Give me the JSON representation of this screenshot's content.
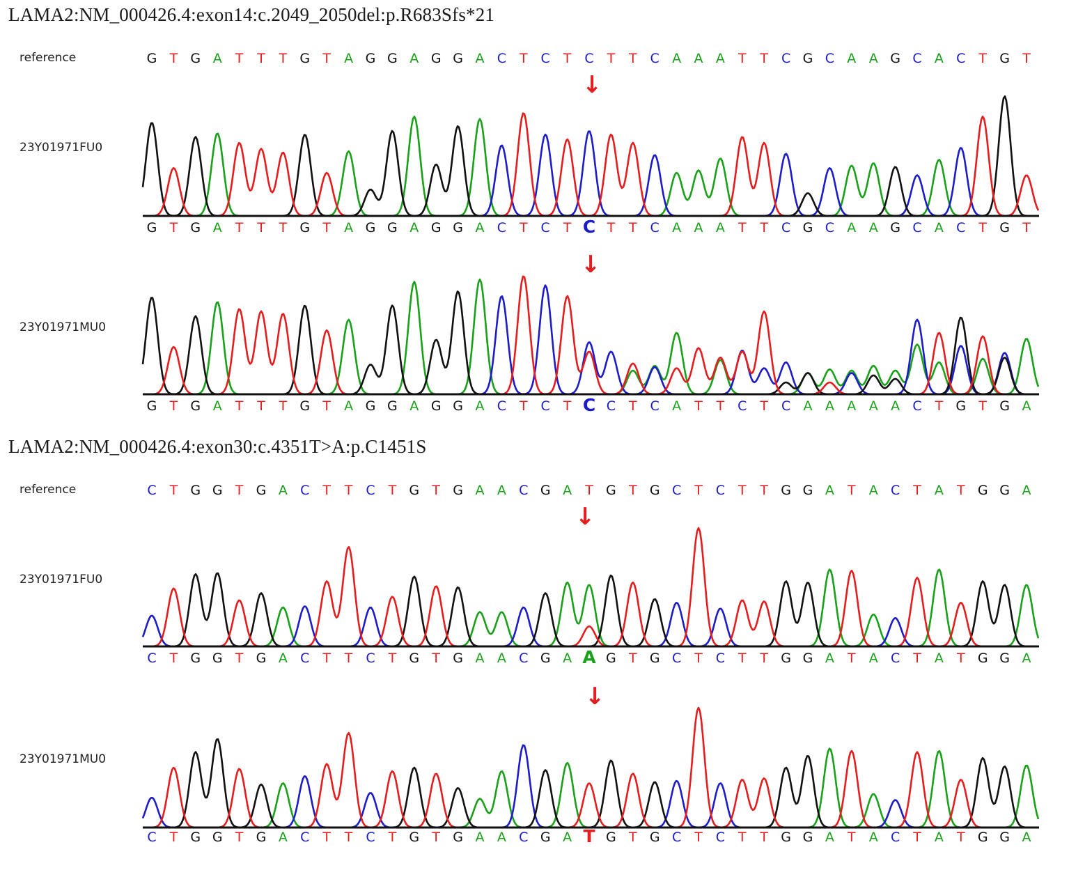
{
  "colors": {
    "A": "#1aa11a",
    "C": "#1c1cc8",
    "G": "#111111",
    "T": "#e41e1e",
    "arrow": "#e41e1e"
  },
  "panels": [
    {
      "title": "LAMA2:NM_000426.4:exon14:c.2049_2050del:p.R683Sfs*21",
      "reference_label": "reference",
      "reference": "GTGATTTGTAGGAGGACTCTCTTCAAATTCGCAAGCACTGT",
      "traces": [
        {
          "label": "23Y01971FU0",
          "calls": "GTGATTTGTAGGAGGACTCTCTTCAAATTCGCAAGCACTGT",
          "highlight": 20,
          "peaks": [
            0.78,
            0.4,
            0.66,
            0.69,
            0.61,
            0.56,
            0.53,
            0.68,
            0.36,
            0.54,
            0.22,
            0.71,
            0.83,
            0.43,
            0.75,
            0.81,
            0.59,
            0.86,
            0.68,
            0.64,
            0.71,
            0.68,
            0.61,
            0.51,
            0.36,
            0.38,
            0.48,
            0.66,
            0.61,
            0.52,
            0.19,
            0.4,
            0.42,
            0.44,
            0.41,
            0.34,
            0.47,
            0.57,
            0.83,
            1.0,
            0.34
          ],
          "secondary": []
        },
        {
          "label": "23Y01971MU0",
          "calls": "GTGATTTGTAGGAGGACTCTCCTCATTCTCAAAAACTGTGA",
          "highlight": 20,
          "peaks": [
            0.82,
            0.4,
            0.66,
            0.78,
            0.72,
            0.7,
            0.68,
            0.75,
            0.54,
            0.63,
            0.25,
            0.75,
            0.95,
            0.46,
            0.87,
            0.97,
            0.83,
            1.0,
            0.92,
            0.83,
            0.44,
            0.36,
            0.26,
            0.23,
            0.52,
            0.39,
            0.31,
            0.37,
            0.7,
            0.27,
            0.18,
            0.21,
            0.2,
            0.24,
            0.2,
            0.63,
            0.52,
            0.65,
            0.49,
            0.31,
            0.26
          ],
          "secondary": [
            [
              20,
              "T",
              0.36
            ],
            [
              22,
              "A",
              0.2
            ],
            [
              23,
              "A",
              0.24
            ],
            [
              24,
              "T",
              0.22
            ],
            [
              26,
              "A",
              0.29
            ],
            [
              27,
              "T",
              0.36
            ],
            [
              28,
              "C",
              0.22
            ],
            [
              29,
              "G",
              0.1
            ],
            [
              30,
              "G",
              0.18
            ],
            [
              31,
              "T",
              0.1
            ],
            [
              32,
              "C",
              0.18
            ],
            [
              33,
              "G",
              0.16
            ],
            [
              34,
              "G",
              0.13
            ],
            [
              35,
              "A",
              0.42
            ],
            [
              36,
              "A",
              0.27
            ],
            [
              37,
              "C",
              0.41
            ],
            [
              38,
              "A",
              0.3
            ],
            [
              39,
              "C",
              0.35
            ],
            [
              40,
              "A",
              0.21
            ]
          ]
        }
      ]
    },
    {
      "title": "LAMA2:NM_000426.4:exon30:c.4351T>A:p.C1451S",
      "reference_label": "reference",
      "reference": "CTGGTGACTTCTGTGAACGATGTGCTCTTGGATACTATGGA",
      "traces": [
        {
          "label": "23Y01971FU0",
          "calls": "CTGGTGACTTCTGTGAACGAAGTGCTCTTGGATACTATGGA",
          "highlight": 20,
          "peaks": [
            0.26,
            0.49,
            0.61,
            0.62,
            0.39,
            0.45,
            0.33,
            0.34,
            0.55,
            0.84,
            0.33,
            0.42,
            0.59,
            0.51,
            0.5,
            0.29,
            0.29,
            0.33,
            0.45,
            0.54,
            0.52,
            0.6,
            0.54,
            0.4,
            0.37,
            1.0,
            0.32,
            0.39,
            0.38,
            0.55,
            0.54,
            0.65,
            0.64,
            0.27,
            0.24,
            0.58,
            0.65,
            0.37,
            0.55,
            0.52,
            0.52
          ],
          "secondary": [
            [
              20,
              "T",
              0.17
            ]
          ]
        },
        {
          "label": "23Y01971MU0",
          "calls": "CTGGTGACTTCTGTGAACGATGTGCTCTTGGATACTATGGA",
          "highlight": 20,
          "peaks": [
            0.25,
            0.5,
            0.63,
            0.74,
            0.49,
            0.36,
            0.37,
            0.43,
            0.53,
            0.79,
            0.29,
            0.47,
            0.5,
            0.45,
            0.33,
            0.24,
            0.47,
            0.69,
            0.48,
            0.54,
            0.37,
            0.56,
            0.45,
            0.38,
            0.39,
            1.0,
            0.37,
            0.4,
            0.41,
            0.5,
            0.6,
            0.66,
            0.64,
            0.28,
            0.23,
            0.63,
            0.64,
            0.4,
            0.58,
            0.51,
            0.52
          ],
          "secondary": []
        }
      ]
    }
  ]
}
